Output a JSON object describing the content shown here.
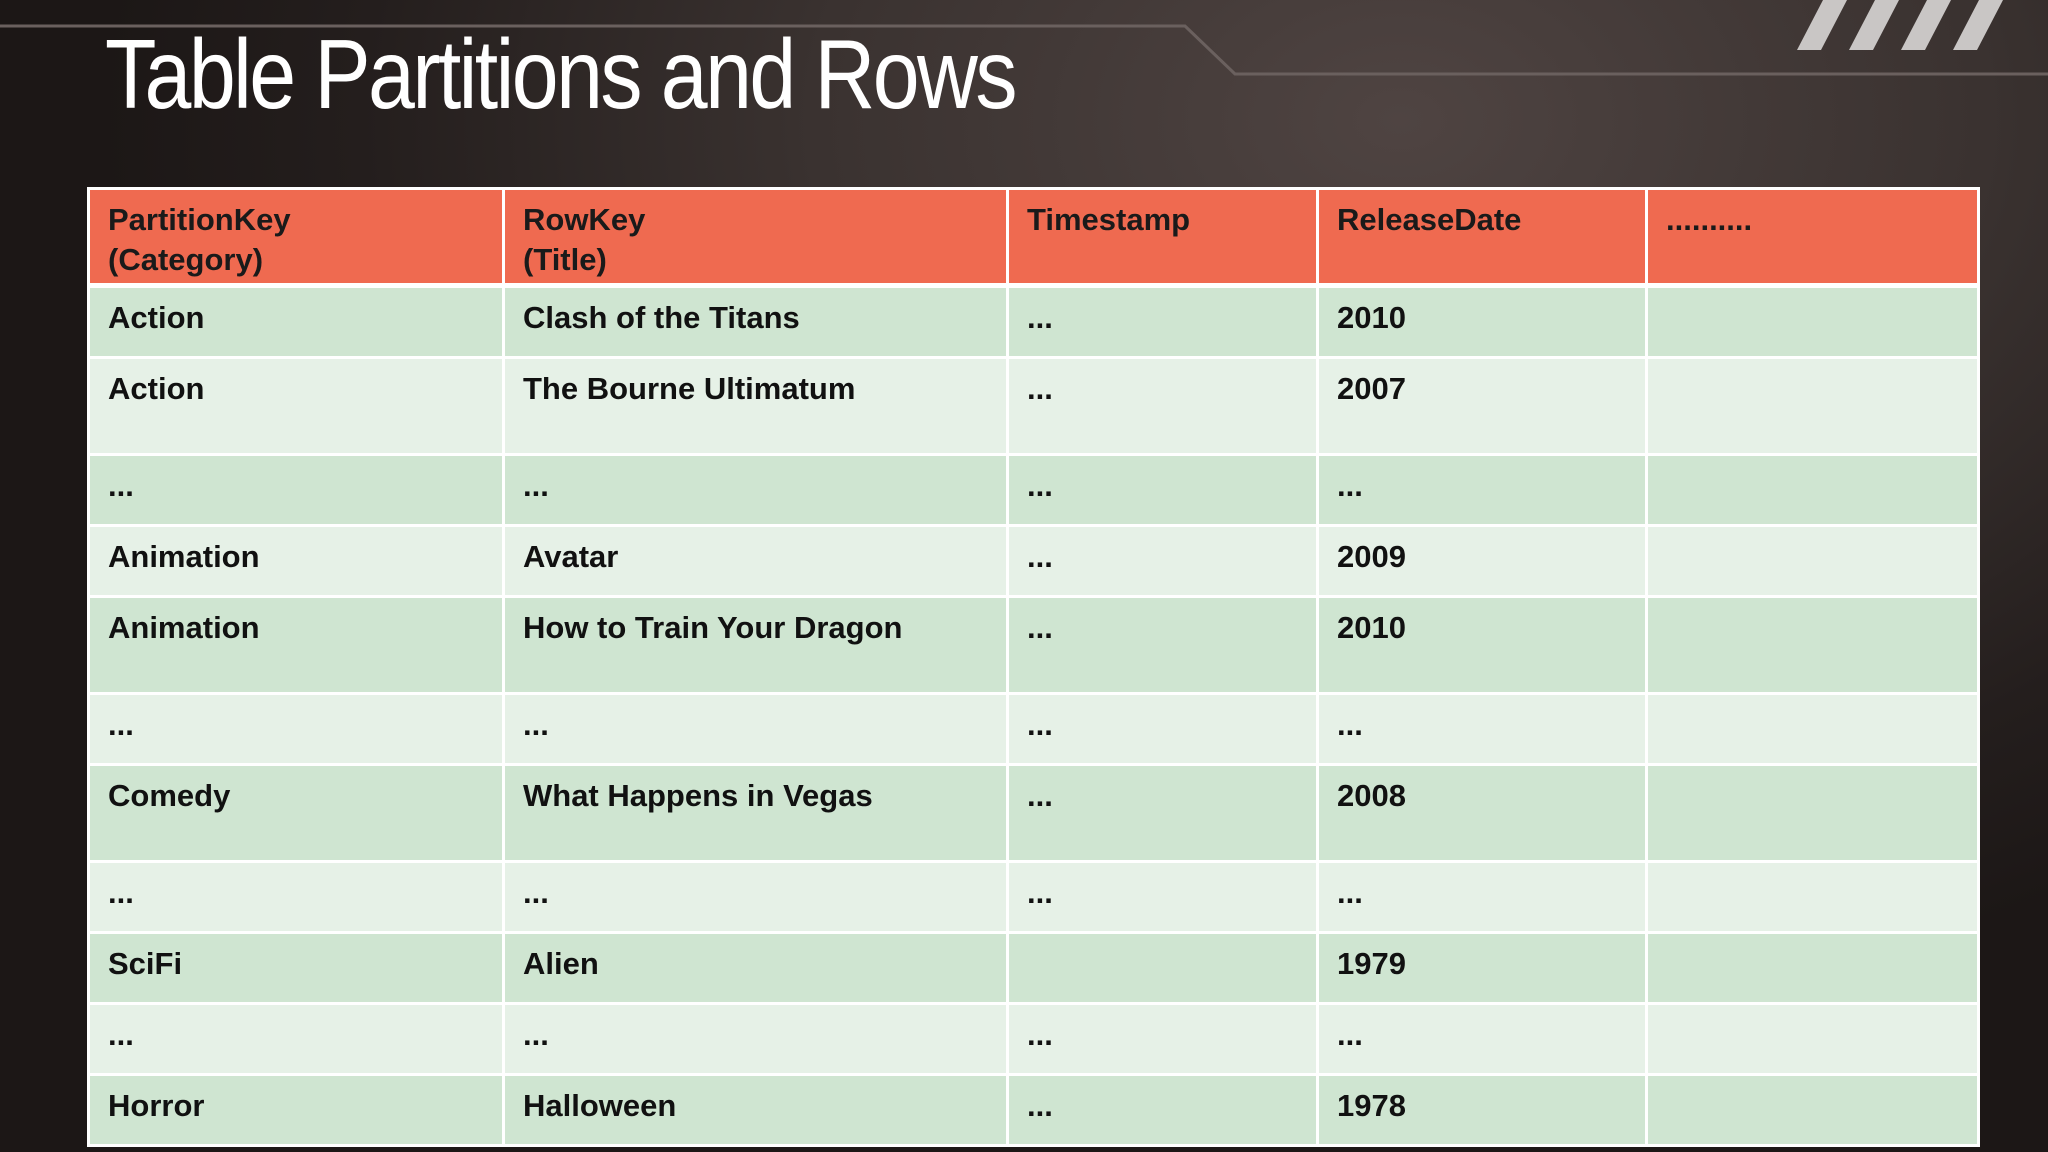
{
  "slide": {
    "title": "Table Partitions and Rows"
  },
  "colors": {
    "header_bg": "#ef6a50",
    "row_band_a": "#cfe5d1",
    "row_band_b": "#e6f1e7",
    "action": "#1fa64a",
    "animation": "#161616",
    "comedy": "#b5561e",
    "scifi": "#c0101e",
    "horror": "#1473c8"
  },
  "table": {
    "headers": [
      {
        "line1": "PartitionKey",
        "line2": "(Category)"
      },
      {
        "line1": "RowKey",
        "line2": "(Title)"
      },
      {
        "line1": "Timestamp",
        "line2": ""
      },
      {
        "line1": "ReleaseDate",
        "line2": ""
      },
      {
        "line1": "..........",
        "line2": ""
      }
    ],
    "rows": [
      {
        "partition": "Action",
        "rowkey": "Clash of the Titans",
        "timestamp": "...",
        "release": "2010",
        "extra": ""
      },
      {
        "partition": "Action",
        "rowkey": "The Bourne Ultimatum",
        "timestamp": "...",
        "release": "2007",
        "extra": ""
      },
      {
        "partition": "...",
        "rowkey": "...",
        "timestamp": "...",
        "release": "...",
        "extra": ""
      },
      {
        "partition": "Animation",
        "rowkey": "Avatar",
        "timestamp": "...",
        "release": "2009",
        "extra": ""
      },
      {
        "partition": "Animation",
        "rowkey": "How to Train Your Dragon",
        "timestamp": "...",
        "release": "2010",
        "extra": ""
      },
      {
        "partition": "...",
        "rowkey": "...",
        "timestamp": "...",
        "release": "...",
        "extra": ""
      },
      {
        "partition": "Comedy",
        "rowkey": "What Happens in Vegas",
        "timestamp": "...",
        "release": "2008",
        "extra": ""
      },
      {
        "partition": "...",
        "rowkey": "...",
        "timestamp": "...",
        "release": "...",
        "extra": ""
      },
      {
        "partition": "SciFi",
        "rowkey": "Alien",
        "timestamp": "",
        "release": "1979",
        "extra": ""
      },
      {
        "partition": "...",
        "rowkey": "...",
        "timestamp": "...",
        "release": "...",
        "extra": ""
      },
      {
        "partition": "Horror",
        "rowkey": "Halloween",
        "timestamp": "...",
        "release": "1978",
        "extra": ""
      }
    ]
  }
}
